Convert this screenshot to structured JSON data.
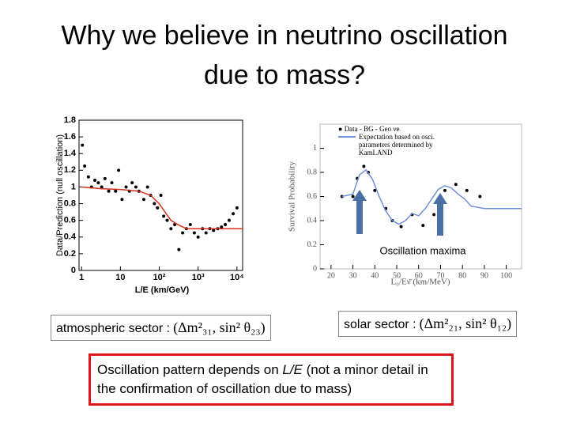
{
  "title": "Why we believe in neutrino oscillation due to mass?",
  "chart_data": [
    {
      "type": "scatter",
      "ylabel": "Data/Prediction (null oscillation)",
      "xlabel": "L/E (km/GeV)",
      "xlog": true,
      "xlim": [
        0.86,
        14000
      ],
      "xticks": [
        1,
        10,
        {
          "value": 100,
          "label": "10²"
        },
        {
          "value": 1000,
          "label": "10³"
        },
        {
          "value": 10000,
          "label": "10⁴"
        }
      ],
      "ylim": [
        0,
        1.8
      ],
      "yticks": [
        0,
        0.2,
        0.4,
        0.6,
        0.8,
        1,
        1.2,
        1.4,
        1.6,
        1.8
      ],
      "series": [
        {
          "name": "Data",
          "color": "#000000",
          "style": "markers",
          "x": [
            1.05,
            1.2,
            1.5,
            1.8,
            2.2,
            2.7,
            3.3,
            4,
            5,
            6,
            7.5,
            9,
            11,
            14,
            17,
            20,
            25,
            30,
            40,
            50,
            60,
            75,
            90,
            110,
            130,
            160,
            200,
            250,
            320,
            400,
            500,
            630,
            800,
            1000,
            1300,
            1600,
            2000,
            2500,
            3200,
            4000,
            5000,
            6300,
            8000,
            10000
          ],
          "values": [
            1.5,
            1.25,
            1.12,
            1.0,
            1.08,
            1.05,
            1.0,
            1.1,
            0.95,
            1.05,
            0.95,
            1.2,
            0.85,
            1.0,
            0.95,
            1.05,
            1.0,
            0.95,
            0.85,
            1.0,
            0.9,
            0.8,
            0.75,
            0.9,
            0.65,
            0.6,
            0.5,
            0.55,
            0.25,
            0.45,
            0.5,
            0.55,
            0.45,
            0.4,
            0.5,
            0.45,
            0.5,
            0.48,
            0.5,
            0.52,
            0.55,
            0.6,
            0.68,
            0.75
          ]
        },
        {
          "name": "Prediction",
          "color": "#d9301e",
          "style": "line",
          "x": [
            1,
            3,
            10,
            30,
            60,
            100,
            150,
            200,
            300,
            500,
            1000,
            3000,
            10000,
            14000
          ],
          "values": [
            1.0,
            0.98,
            0.97,
            0.95,
            0.9,
            0.8,
            0.68,
            0.6,
            0.55,
            0.5,
            0.5,
            0.5,
            0.5,
            0.5
          ]
        }
      ]
    },
    {
      "type": "scatter",
      "ylabel": "Survival Probability",
      "xlabel": "L₀/Eν̄ (km/MeV)",
      "xlog": false,
      "xlim": [
        15,
        107
      ],
      "xticks": [
        20,
        30,
        40,
        50,
        60,
        70,
        80,
        90,
        100
      ],
      "ylim": [
        0,
        1.2
      ],
      "yticks": [
        0,
        0.2,
        0.4,
        0.6,
        0.8,
        1
      ],
      "annotation": "Oscillation maxima",
      "series": [
        {
          "name": "Data - BG - Geo νe",
          "color": "#000000",
          "style": "markers",
          "x": [
            25,
            30,
            32,
            35,
            37,
            40,
            45,
            48,
            52,
            57,
            62,
            67,
            72,
            77,
            82,
            88
          ],
          "values": [
            0.6,
            0.6,
            0.75,
            0.85,
            0.8,
            0.65,
            0.5,
            0.4,
            0.35,
            0.45,
            0.36,
            0.45,
            0.65,
            0.7,
            0.65,
            0.6
          ]
        },
        {
          "name": "Expectation based on osci. parameters determined by KamLAND",
          "color": "#6f8fd8",
          "style": "line",
          "x": [
            25,
            30,
            33,
            36,
            39,
            42,
            45,
            48,
            51,
            54,
            57,
            60,
            63,
            66,
            69,
            72,
            75,
            78,
            81,
            84,
            90,
            95,
            100,
            107
          ],
          "values": [
            0.6,
            0.62,
            0.78,
            0.82,
            0.74,
            0.6,
            0.48,
            0.4,
            0.37,
            0.4,
            0.46,
            0.44,
            0.5,
            0.58,
            0.66,
            0.69,
            0.67,
            0.62,
            0.58,
            0.52,
            0.5,
            0.5,
            0.5,
            0.5
          ]
        }
      ]
    }
  ],
  "sectors": [
    {
      "label": "atmospheric sector :",
      "formula": "(Δm²₃₁, sin² θ₂₃)"
    },
    {
      "label": "solar sector :",
      "formula": "(Δm²₂₁, sin² θ₁₂)"
    }
  ],
  "note": {
    "before": "Oscillation pattern depends on ",
    "emphasis": "L/E",
    "after": " (not a minor detail in the confirmation of oscillation due to mass)"
  }
}
